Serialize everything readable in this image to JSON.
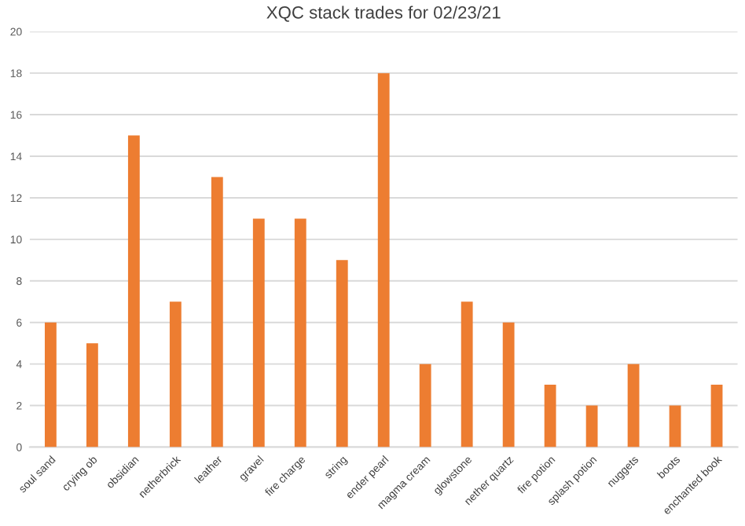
{
  "chart_data": {
    "type": "bar",
    "title": "XQC stack trades for 02/23/21",
    "categories": [
      "soul sand",
      "crying ob",
      "obsidian",
      "netherbrick",
      "leather",
      "gravel",
      "fire charge",
      "string",
      "ender pearl",
      "magma cream",
      "glowstone",
      "nether quartz",
      "fire potion",
      "splash potion",
      "nuggets",
      "boots",
      "enchanted book"
    ],
    "values": [
      6,
      5,
      15,
      7,
      13,
      11,
      11,
      9,
      18,
      4,
      7,
      6,
      3,
      2,
      4,
      2,
      3
    ],
    "color": "#ed7d31",
    "ylim": [
      0,
      20
    ],
    "yticks": [
      0,
      2,
      4,
      6,
      8,
      10,
      12,
      14,
      16,
      18,
      20
    ],
    "grid": "y"
  }
}
